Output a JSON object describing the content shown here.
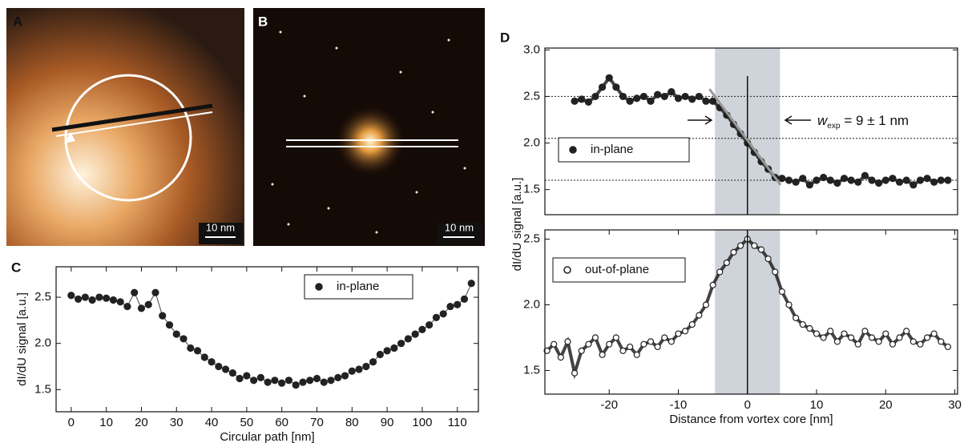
{
  "images": [
    {
      "label": "A",
      "scale": "10 nm"
    },
    {
      "label": "B",
      "scale": "10 nm"
    }
  ],
  "chart_data": [
    {
      "type": "scatter",
      "panel_label": "C",
      "xlabel": "Circular path [nm]",
      "ylabel": "dI/dU signal [a.u.]",
      "xlim": [
        -4.3,
        116
      ],
      "ylim": [
        1.26,
        2.83
      ],
      "xticks": [
        0,
        10,
        20,
        30,
        40,
        50,
        60,
        70,
        80,
        90,
        100,
        110
      ],
      "yticks": [
        1.5,
        {
          "value": 2,
          "label": "2.0"
        },
        2.5
      ],
      "legend": "top-right",
      "series": [
        {
          "name": "in-plane",
          "color": "#222222",
          "marker": "filled",
          "x": [
            0,
            2,
            4,
            6,
            8,
            10,
            12,
            14,
            16,
            18,
            20,
            22,
            24,
            26,
            28,
            30,
            32,
            34,
            36,
            38,
            40,
            42,
            44,
            46,
            48,
            50,
            52,
            54,
            56,
            58,
            60,
            62,
            64,
            66,
            68,
            70,
            72,
            74,
            76,
            78,
            80,
            82,
            84,
            86,
            88,
            90,
            92,
            94,
            96,
            98,
            100,
            102,
            104,
            106,
            108,
            110,
            112,
            114
          ],
          "values": [
            2.52,
            2.48,
            2.5,
            2.47,
            2.5,
            2.49,
            2.47,
            2.45,
            2.4,
            2.55,
            2.38,
            2.42,
            2.55,
            2.3,
            2.2,
            2.1,
            2.05,
            1.95,
            1.92,
            1.85,
            1.8,
            1.75,
            1.72,
            1.68,
            1.62,
            1.65,
            1.6,
            1.63,
            1.58,
            1.6,
            1.57,
            1.6,
            1.55,
            1.58,
            1.6,
            1.62,
            1.58,
            1.6,
            1.63,
            1.65,
            1.7,
            1.72,
            1.75,
            1.8,
            1.88,
            1.92,
            1.95,
            2.0,
            2.05,
            2.1,
            2.15,
            2.2,
            2.28,
            2.32,
            2.4,
            2.42,
            2.48,
            2.65
          ]
        }
      ]
    },
    {
      "type": "scatter",
      "panel_label": "D",
      "ylabel": "dI/dU signal [a.u.]",
      "xlim": [
        -29.3,
        30.4
      ],
      "ylim": [
        1.23,
        3.02
      ],
      "yticks": [
        1.5,
        {
          "value": 2,
          "label": "2.0"
        },
        2.5,
        {
          "value": 3,
          "label": "3.0"
        }
      ],
      "hlines": [
        2.5,
        2.05,
        1.6
      ],
      "band": [
        -4.7,
        4.7
      ],
      "vline": 0,
      "fit": {
        "x": [
          -5.5,
          4.8
        ],
        "y": [
          2.58,
          1.55
        ]
      },
      "annotation": {
        "w": "w",
        "sub": "exp",
        "rest": "= 9 ± 1 nm"
      },
      "legend": "left",
      "series": [
        {
          "name": "in-plane",
          "color": "#222222",
          "marker": "filled",
          "x": [
            -25,
            -24,
            -23,
            -22,
            -21,
            -20,
            -19,
            -18,
            -17,
            -16,
            -15,
            -14,
            -13,
            -12,
            -11,
            -10,
            -9,
            -8,
            -7,
            -6,
            -5,
            -4,
            -3,
            -2,
            -1,
            0,
            1,
            2,
            3,
            4,
            5,
            6,
            7,
            8,
            9,
            10,
            11,
            12,
            13,
            14,
            15,
            16,
            17,
            18,
            19,
            20,
            21,
            22,
            23,
            24,
            25,
            26,
            27,
            28,
            29
          ],
          "values": [
            2.45,
            2.47,
            2.44,
            2.5,
            2.6,
            2.7,
            2.6,
            2.5,
            2.45,
            2.48,
            2.5,
            2.45,
            2.52,
            2.5,
            2.55,
            2.48,
            2.5,
            2.47,
            2.5,
            2.45,
            2.45,
            2.38,
            2.3,
            2.2,
            2.1,
            2.0,
            1.9,
            1.8,
            1.72,
            1.63,
            1.62,
            1.6,
            1.58,
            1.62,
            1.55,
            1.6,
            1.63,
            1.6,
            1.57,
            1.62,
            1.6,
            1.58,
            1.65,
            1.6,
            1.57,
            1.6,
            1.62,
            1.58,
            1.6,
            1.55,
            1.6,
            1.62,
            1.58,
            1.6,
            1.6
          ]
        }
      ]
    },
    {
      "type": "scatter",
      "xlabel": "Distance from vortex core [nm]",
      "xlim": [
        -29.3,
        30.4
      ],
      "ylim": [
        1.32,
        2.57
      ],
      "xticks": [
        -20,
        -10,
        0,
        10,
        20,
        30
      ],
      "yticks": [
        1.5,
        {
          "value": 2,
          "label": "2.0"
        },
        2.5
      ],
      "band": [
        -4.7,
        4.7
      ],
      "vline": 0,
      "legend": "left",
      "series": [
        {
          "name": "out-of-plane",
          "color": "#222222",
          "marker": "open",
          "x": [
            -29,
            -28,
            -27,
            -26,
            -25,
            -24,
            -23,
            -22,
            -21,
            -20,
            -19,
            -18,
            -17,
            -16,
            -15,
            -14,
            -13,
            -12,
            -11,
            -10,
            -9,
            -8,
            -7,
            -6,
            -5,
            -4,
            -3,
            -2,
            -1,
            0,
            1,
            2,
            3,
            4,
            5,
            6,
            7,
            8,
            9,
            10,
            11,
            12,
            13,
            14,
            15,
            16,
            17,
            18,
            19,
            20,
            21,
            22,
            23,
            24,
            25,
            26,
            27,
            28,
            29
          ],
          "values": [
            1.65,
            1.7,
            1.6,
            1.72,
            1.48,
            1.65,
            1.7,
            1.75,
            1.62,
            1.7,
            1.75,
            1.65,
            1.68,
            1.62,
            1.7,
            1.72,
            1.68,
            1.75,
            1.72,
            1.78,
            1.8,
            1.85,
            1.92,
            2.0,
            2.15,
            2.25,
            2.32,
            2.4,
            2.45,
            2.5,
            2.45,
            2.42,
            2.35,
            2.25,
            2.1,
            2.0,
            1.9,
            1.85,
            1.82,
            1.78,
            1.75,
            1.8,
            1.72,
            1.78,
            1.75,
            1.7,
            1.8,
            1.75,
            1.72,
            1.78,
            1.7,
            1.75,
            1.8,
            1.72,
            1.7,
            1.75,
            1.78,
            1.72,
            1.68
          ]
        }
      ]
    }
  ]
}
